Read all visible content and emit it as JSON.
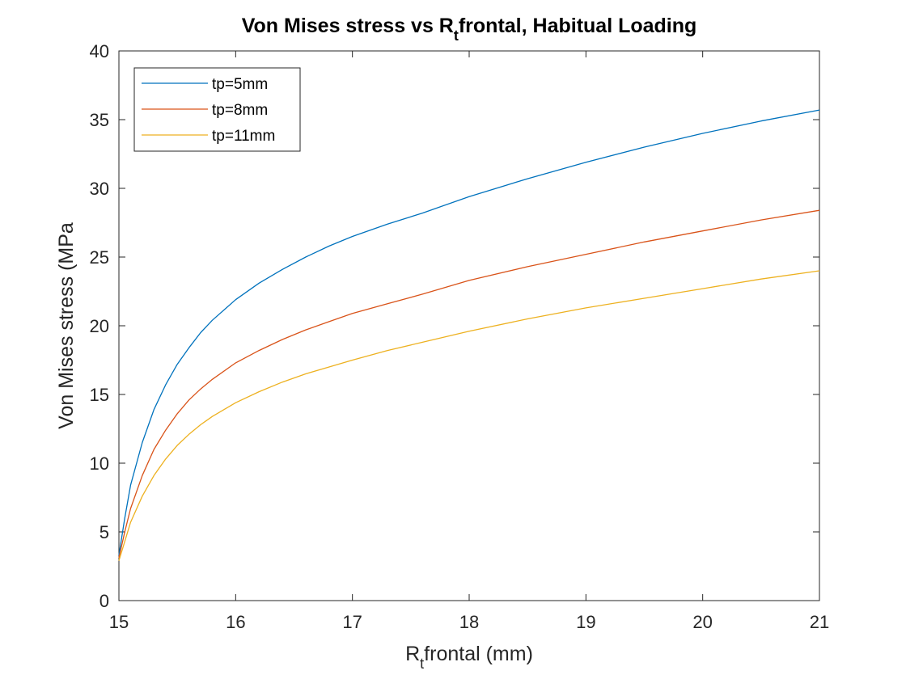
{
  "chart_data": {
    "type": "line",
    "title_main": "Von Mises stress vs R",
    "title_sub": "t",
    "title_rest": "frontal, Habitual Loading",
    "xlabel_main": "R",
    "xlabel_sub": "t",
    "xlabel_rest": "frontal (mm)",
    "ylabel": "Von Mises stress (MPa",
    "xlim": [
      15,
      21
    ],
    "ylim": [
      0,
      40
    ],
    "xticks": [
      15,
      16,
      17,
      18,
      19,
      20,
      21
    ],
    "yticks": [
      0,
      5,
      10,
      15,
      20,
      25,
      30,
      35,
      40
    ],
    "grid": false,
    "box": true,
    "legend_position": "top-left",
    "series": [
      {
        "name": "tp=5mm",
        "color": "#0072BD",
        "x": [
          15.0,
          15.05,
          15.1,
          15.2,
          15.3,
          15.4,
          15.5,
          15.6,
          15.7,
          15.8,
          16.0,
          16.2,
          16.4,
          16.6,
          16.8,
          17.0,
          17.3,
          17.6,
          18.0,
          18.5,
          19.0,
          19.5,
          20.0,
          20.5,
          21.0
        ],
        "y": [
          3.3,
          6.0,
          8.4,
          11.5,
          13.9,
          15.7,
          17.2,
          18.4,
          19.5,
          20.4,
          21.9,
          23.1,
          24.1,
          25.0,
          25.8,
          26.5,
          27.4,
          28.2,
          29.4,
          30.7,
          31.9,
          33.0,
          34.0,
          34.9,
          35.7
        ]
      },
      {
        "name": "tp=8mm",
        "color": "#D95319",
        "x": [
          15.0,
          15.05,
          15.1,
          15.2,
          15.3,
          15.4,
          15.5,
          15.6,
          15.7,
          15.8,
          16.0,
          16.2,
          16.4,
          16.6,
          16.8,
          17.0,
          17.3,
          17.6,
          18.0,
          18.5,
          19.0,
          19.5,
          20.0,
          20.5,
          21.0
        ],
        "y": [
          3.1,
          5.0,
          6.7,
          9.1,
          11.0,
          12.4,
          13.6,
          14.6,
          15.4,
          16.1,
          17.3,
          18.2,
          19.0,
          19.7,
          20.3,
          20.9,
          21.6,
          22.3,
          23.3,
          24.3,
          25.2,
          26.1,
          26.9,
          27.7,
          28.4
        ]
      },
      {
        "name": "tp=11mm",
        "color": "#EDB120",
        "x": [
          15.0,
          15.05,
          15.1,
          15.2,
          15.3,
          15.4,
          15.5,
          15.6,
          15.7,
          15.8,
          16.0,
          16.2,
          16.4,
          16.6,
          16.8,
          17.0,
          17.3,
          17.6,
          18.0,
          18.5,
          19.0,
          19.5,
          20.0,
          20.5,
          21.0
        ],
        "y": [
          2.9,
          4.3,
          5.7,
          7.6,
          9.1,
          10.3,
          11.3,
          12.1,
          12.8,
          13.4,
          14.4,
          15.2,
          15.9,
          16.5,
          17.0,
          17.5,
          18.2,
          18.8,
          19.6,
          20.5,
          21.3,
          22.0,
          22.7,
          23.4,
          24.0
        ]
      }
    ]
  }
}
